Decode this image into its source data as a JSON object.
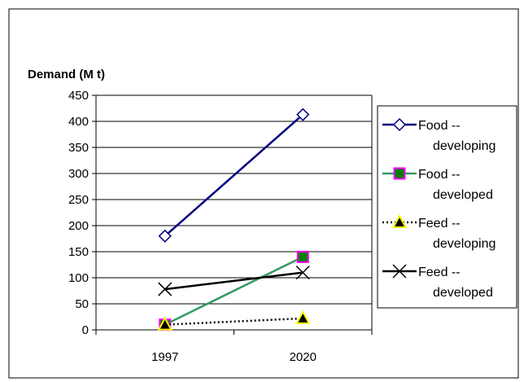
{
  "chart_data": {
    "type": "line",
    "ylabel": "Demand (M t)",
    "x": [
      "1997",
      "2020"
    ],
    "ylim": [
      0,
      450
    ],
    "yticks": [
      0,
      50,
      100,
      150,
      200,
      250,
      300,
      350,
      400,
      450
    ],
    "grid": "horizontal",
    "legend_position": "right",
    "series": [
      {
        "name_line1": "Food --",
        "name_line2": "developing",
        "values": [
          180,
          413
        ],
        "color": "#000080",
        "marker": "diamond",
        "marker_fill": "#ffffff",
        "marker_stroke": "#000080",
        "dash": "solid"
      },
      {
        "name_line1": "Food --",
        "name_line2": "developed",
        "values": [
          10,
          140
        ],
        "color": "#339966",
        "marker": "square",
        "marker_fill": "#008000",
        "marker_stroke": "#ff00ff",
        "dash": "solid"
      },
      {
        "name_line1": "Feed --",
        "name_line2": "developing",
        "values": [
          10,
          22
        ],
        "color": "#000000",
        "marker": "triangle",
        "marker_fill": "#000000",
        "marker_stroke": "#ffff00",
        "dash": "dotted"
      },
      {
        "name_line1": "Feed --",
        "name_line2": "developed",
        "values": [
          78,
          110
        ],
        "color": "#000000",
        "marker": "x",
        "marker_fill": "none",
        "marker_stroke": "#000000",
        "dash": "solid"
      }
    ]
  }
}
